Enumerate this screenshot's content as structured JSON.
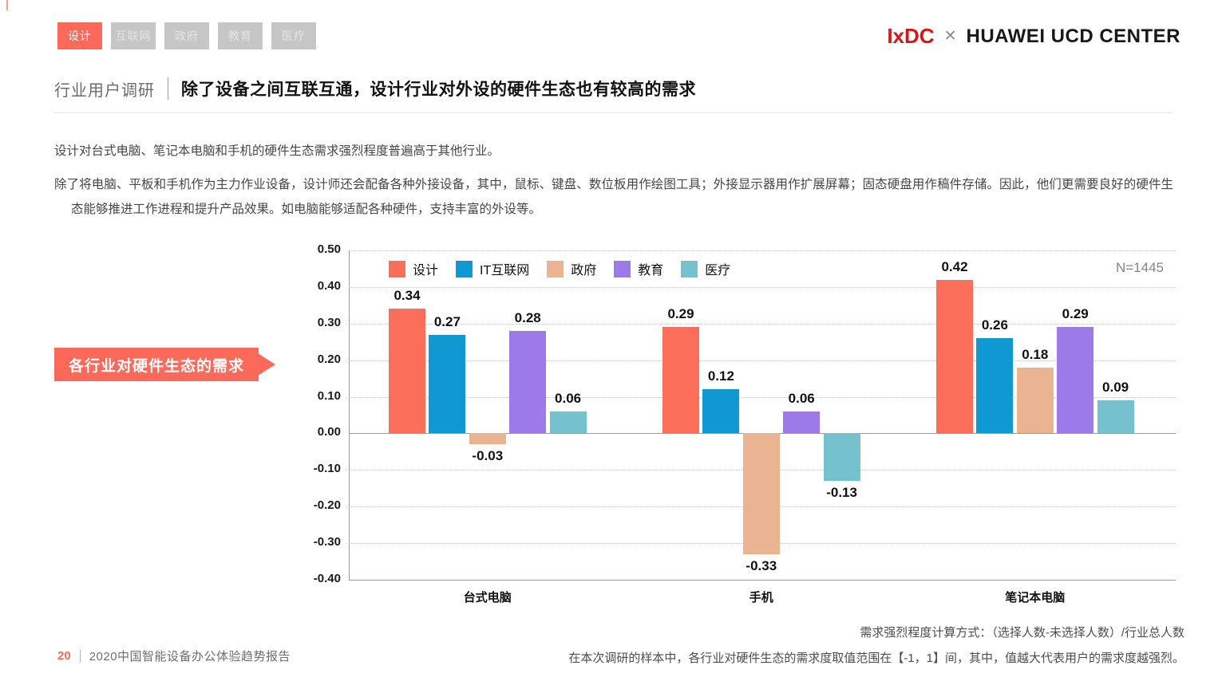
{
  "tabs": [
    {
      "label": "设计",
      "active": true
    },
    {
      "label": "互联网",
      "active": false
    },
    {
      "label": "政府",
      "active": false
    },
    {
      "label": "教育",
      "active": false
    },
    {
      "label": "医疗",
      "active": false
    }
  ],
  "logo": {
    "ixdc": "IxDC",
    "cross": "✕",
    "partner": "HUAWEI UCD CENTER"
  },
  "header": {
    "section": "行业用户调研",
    "title": "除了设备之间互联互通，设计行业对外设的硬件生态也有较高的需求"
  },
  "paragraphs": [
    "设计对台式电脑、笔记本电脑和手机的硬件生态需求强烈程度普遍高于其他行业。",
    "除了将电脑、平板和手机作为主力作业设备，设计师还会配备各种外接设备，其中，鼠标、键盘、数位板用作绘图工具；外接显示器用作扩展屏幕；固态硬盘用作稿件存储。因此，他们更需要良好的硬件生态能够推进工作进程和提升产品效果。如电脑能够适配各种硬件，支持丰富的外设等。"
  ],
  "callout": {
    "label": "各行业对硬件生态的需求"
  },
  "chart_data": {
    "type": "bar",
    "title": "各行业对硬件生态的需求",
    "sample_label": "N=1445",
    "categories": [
      "台式电脑",
      "手机",
      "笔记本电脑"
    ],
    "series": [
      {
        "name": "设计",
        "color": "#fb6e5a",
        "values": [
          0.34,
          0.29,
          0.42
        ]
      },
      {
        "name": "IT互联网",
        "color": "#0f98d2",
        "values": [
          0.27,
          0.12,
          0.26
        ]
      },
      {
        "name": "政府",
        "color": "#eab392",
        "values": [
          -0.03,
          -0.33,
          0.18
        ]
      },
      {
        "name": "教育",
        "color": "#9c7be8",
        "values": [
          0.28,
          0.06,
          0.29
        ]
      },
      {
        "name": "医疗",
        "color": "#75c2ce",
        "values": [
          0.06,
          -0.13,
          0.09
        ]
      }
    ],
    "ylim": [
      -0.4,
      0.5
    ],
    "yticks": [
      "0.50",
      "0.40",
      "0.30",
      "0.20",
      "0.10",
      "0.00",
      "-0.10",
      "-0.20",
      "-0.30",
      "-0.40"
    ],
    "grid": "horizontal-dotted",
    "legend_position": "top-left-inside",
    "value_labels": true
  },
  "footnotes": [
    "需求强烈程度计算方式：（选择人数-未选择人数）/行业总人数",
    "在本次调研的样本中，各行业对硬件生态的需求度取值范围在【-1，1】间，其中，值越大代表用户的需求度越强烈。"
  ],
  "footer": {
    "page": "20",
    "report": "2020中国智能设备办公体验趋势报告"
  }
}
